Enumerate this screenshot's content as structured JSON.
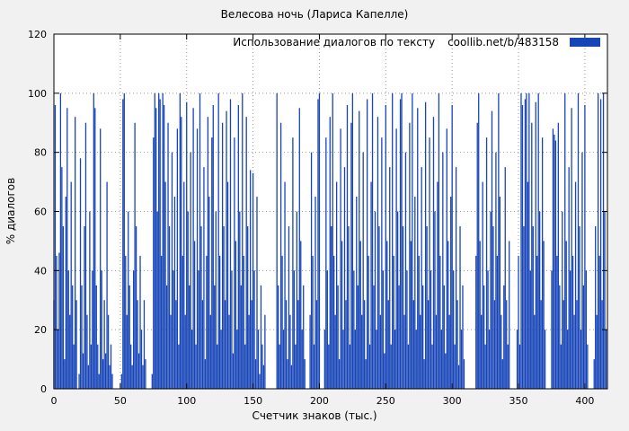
{
  "figure": {
    "title": "Велесова ночь (Лариса Капелле)",
    "xlabel": "Счетчик знаков (тыс.)",
    "ylabel": "% диалогов",
    "legend_label": "Использование диалогов по тексту",
    "legend_source": "coollib.net/b/483158"
  },
  "chart_data": {
    "type": "bar",
    "title": "Велесова ночь (Лариса Капелле)",
    "xlabel": "Счетчик знаков (тыс.)",
    "ylabel": "% диалогов",
    "legend": "Использование диалогов по тексту coollib.net/b/483158",
    "legend_position": "top-right",
    "grid": true,
    "bar_color": "#1745b8",
    "background_color": "#f1f1f1",
    "plot_background": "#ffffff",
    "xlim": [
      0,
      417
    ],
    "ylim": [
      0,
      120
    ],
    "x_ticks": [
      0,
      50,
      100,
      150,
      200,
      250,
      300,
      350,
      400
    ],
    "y_ticks": [
      0,
      20,
      40,
      60,
      80,
      100,
      120
    ],
    "x_start": 0,
    "x_step": 1,
    "values": [
      30,
      96,
      45,
      20,
      46,
      100,
      75,
      55,
      10,
      65,
      95,
      40,
      25,
      70,
      35,
      15,
      92,
      30,
      0,
      5,
      78,
      35,
      12,
      55,
      90,
      25,
      8,
      60,
      15,
      40,
      100,
      95,
      35,
      15,
      5,
      88,
      40,
      10,
      30,
      12,
      70,
      25,
      8,
      15,
      5,
      0,
      0,
      0,
      0,
      0,
      0,
      5,
      98,
      100,
      45,
      25,
      60,
      35,
      15,
      8,
      40,
      90,
      55,
      30,
      12,
      45,
      20,
      8,
      30,
      10,
      0,
      0,
      0,
      0,
      5,
      85,
      100,
      95,
      60,
      100,
      98,
      45,
      100,
      96,
      70,
      35,
      90,
      55,
      25,
      80,
      40,
      65,
      30,
      88,
      15,
      100,
      92,
      45,
      70,
      25,
      97,
      60,
      35,
      80,
      20,
      95,
      50,
      15,
      88,
      40,
      100,
      55,
      30,
      75,
      10,
      45,
      92,
      65,
      25,
      85,
      96,
      35,
      60,
      15,
      100,
      45,
      20,
      90,
      55,
      30,
      94,
      70,
      25,
      98,
      40,
      12,
      85,
      50,
      20,
      96,
      60,
      35,
      100,
      45,
      15,
      92,
      55,
      25,
      74,
      30,
      73,
      40,
      10,
      65,
      20,
      5,
      35,
      15,
      8,
      25,
      0,
      0,
      0,
      0,
      0,
      0,
      0,
      0,
      100,
      35,
      15,
      90,
      45,
      20,
      70,
      30,
      10,
      55,
      25,
      8,
      85,
      40,
      15,
      60,
      30,
      95,
      50,
      20,
      35,
      10,
      0,
      0,
      0,
      25,
      80,
      45,
      15,
      65,
      30,
      98,
      100,
      0,
      0,
      0,
      20,
      85,
      40,
      15,
      92,
      55,
      100,
      45,
      25,
      70,
      35,
      10,
      88,
      50,
      20,
      75,
      30,
      96,
      55,
      15,
      90,
      100,
      40,
      20,
      65,
      35,
      94,
      50,
      25,
      80,
      30,
      10,
      98,
      45,
      15,
      70,
      100,
      35,
      60,
      20,
      92,
      55,
      25,
      85,
      40,
      12,
      96,
      50,
      30,
      75,
      15,
      100,
      45,
      20,
      88,
      60,
      35,
      98,
      100,
      55,
      25,
      80,
      40,
      15,
      90,
      50,
      100,
      30,
      65,
      20,
      95,
      45,
      25,
      75,
      35,
      10,
      97,
      55,
      30,
      85,
      40,
      15,
      92,
      60,
      25,
      70,
      100,
      45,
      20,
      80,
      35,
      12,
      88,
      50,
      25,
      65,
      96,
      40,
      15,
      75,
      30,
      8,
      55,
      20,
      35,
      10,
      0,
      0,
      0,
      0,
      0,
      0,
      0,
      0,
      45,
      90,
      100,
      50,
      25,
      70,
      35,
      15,
      85,
      40,
      20,
      60,
      94,
      55,
      30,
      80,
      45,
      100,
      65,
      25,
      10,
      35,
      75,
      30,
      15,
      50,
      0,
      0,
      0,
      0,
      0,
      20,
      45,
      15,
      100,
      96,
      55,
      98,
      100,
      70,
      100,
      40,
      90,
      55,
      25,
      97,
      45,
      100,
      60,
      30,
      85,
      50,
      20,
      0,
      0,
      0,
      0,
      40,
      88,
      86,
      84,
      45,
      90,
      35,
      15,
      60,
      30,
      100,
      50,
      20,
      75,
      40,
      95,
      45,
      25,
      70,
      30,
      100,
      55,
      20,
      80,
      35,
      96,
      40,
      15,
      0,
      0,
      0,
      0,
      10,
      55,
      25,
      100,
      45,
      98,
      30,
      100,
      60,
      20
    ]
  }
}
